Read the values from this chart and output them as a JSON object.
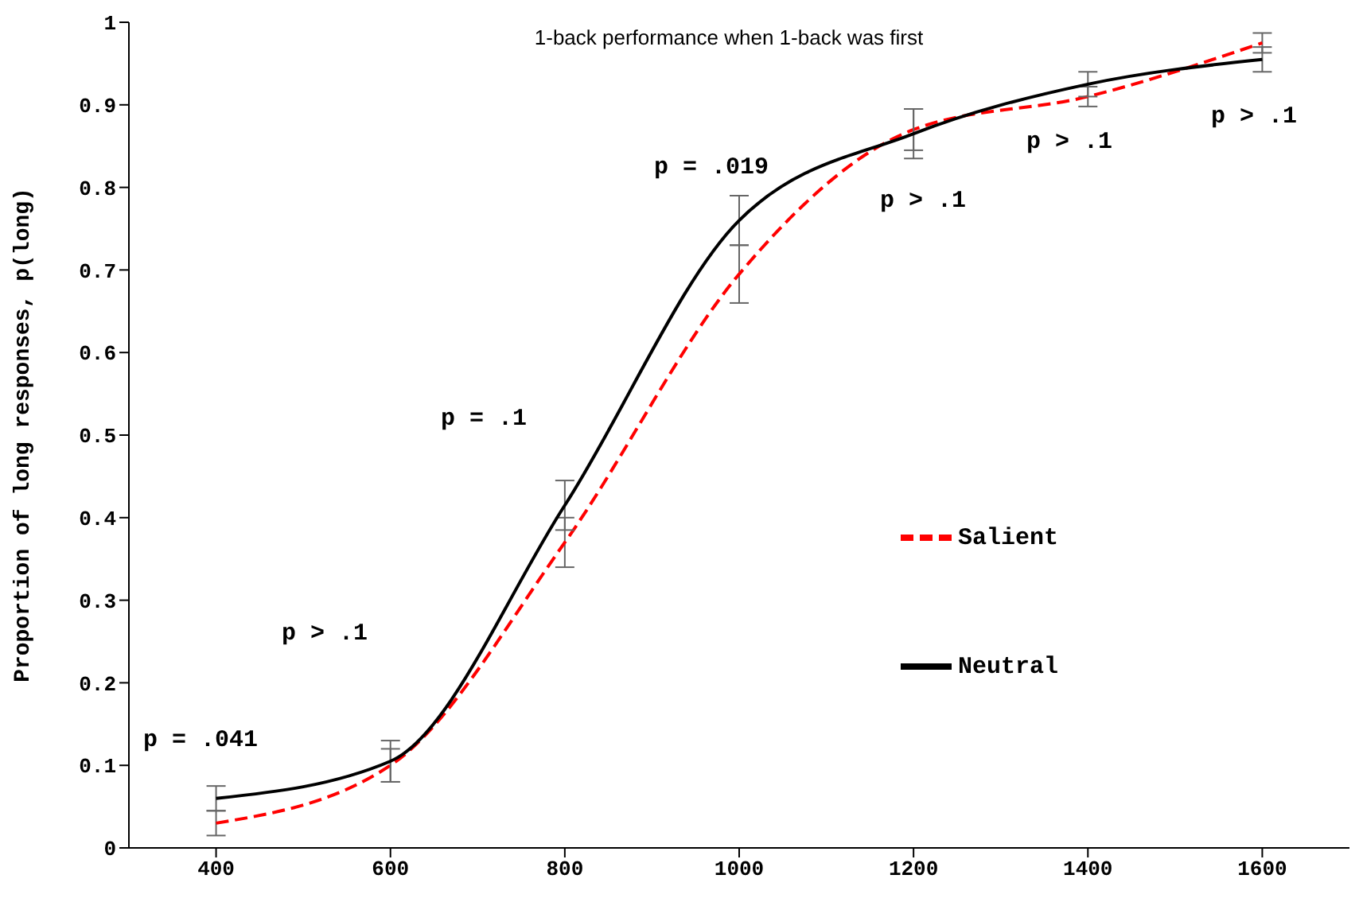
{
  "chart_data": {
    "type": "line",
    "title": "1-back performance when 1-back was first",
    "ylabel": "Proportion of long responses, p(long)",
    "x": [
      400,
      600,
      800,
      1000,
      1200,
      1400,
      1600
    ],
    "series": [
      {
        "name": "Salient",
        "color": "#ff0000",
        "line_style": "dashed",
        "values": [
          0.03,
          0.1,
          0.37,
          0.695,
          0.87,
          0.91,
          0.975
        ],
        "errors": [
          0.015,
          0.02,
          0.03,
          0.035,
          0.025,
          0.012,
          0.012
        ]
      },
      {
        "name": "Neutral",
        "color": "#000000",
        "line_style": "solid",
        "values": [
          0.06,
          0.105,
          0.415,
          0.76,
          0.865,
          0.925,
          0.955
        ],
        "errors": [
          0.015,
          0.025,
          0.03,
          0.03,
          0.03,
          0.015,
          0.015
        ]
      }
    ],
    "xlim": [
      300,
      1700
    ],
    "xticks": [
      400,
      600,
      800,
      1000,
      1200,
      1400,
      1600
    ],
    "ylim": [
      0,
      1
    ],
    "yticks": [
      0,
      0.1,
      0.2,
      0.3,
      0.4,
      0.5,
      0.6,
      0.7,
      0.8,
      0.9,
      1
    ],
    "grid": false,
    "legend": "right",
    "marker": "none",
    "annotations": [
      "p = .041",
      "p > .1",
      "p = .1",
      "p = .019",
      "p > .1",
      "p > .1",
      "p > .1"
    ]
  }
}
